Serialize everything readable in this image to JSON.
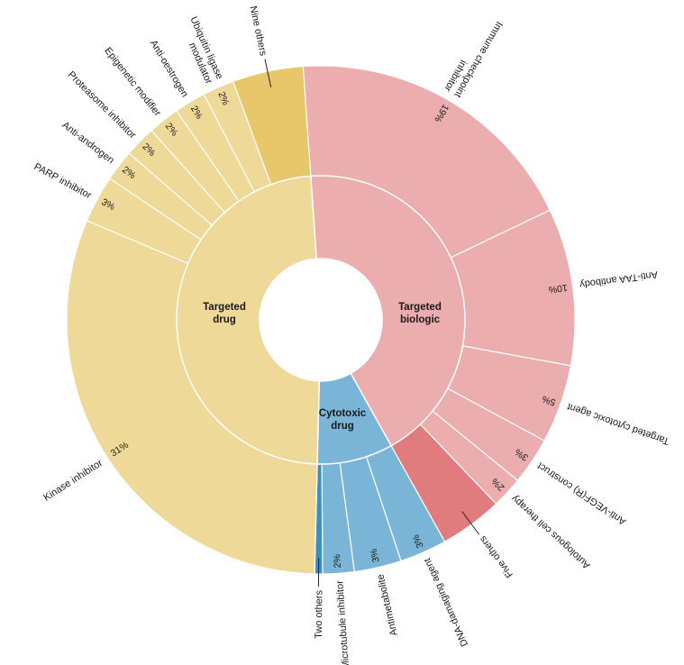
{
  "chart_data": {
    "type": "sunburst",
    "title": "",
    "colors": {
      "targeted_drug": "#EFD998",
      "targeted_biologic": "#EBADAE",
      "cytotoxic_drug": "#7AB4D6",
      "nine_others": "#E8C66A",
      "five_others": "#E07B7E",
      "two_others": "#3F8EC0"
    },
    "inner": [
      {
        "label": "Targeted drug",
        "label_lines": [
          "Targeted",
          "drug"
        ]
      },
      {
        "label": "Targeted biologic",
        "label_lines": [
          "Targeted",
          "biologic"
        ]
      },
      {
        "label": "Cytotoxic drug",
        "label_lines": [
          "Cytotoxic",
          "drug"
        ]
      }
    ],
    "outer": [
      {
        "label_lines": [
          "Immune checkpoint",
          "inhibitor"
        ],
        "pct": "19%",
        "value": 19,
        "parent": 1
      },
      {
        "label_lines": [
          "Anti-TAA antibody"
        ],
        "pct": "10%",
        "value": 10,
        "parent": 1
      },
      {
        "label_lines": [
          "Targeted cytotoxic agent"
        ],
        "pct": "5%",
        "value": 5,
        "parent": 1
      },
      {
        "label_lines": [
          "Anti-VEGF(R) construct"
        ],
        "pct": "3%",
        "value": 3,
        "parent": 1
      },
      {
        "label_lines": [
          "Autologous cell therapy"
        ],
        "pct": "2%",
        "value": 2,
        "parent": 1
      },
      {
        "label_lines": [
          "Five others"
        ],
        "pct": "",
        "value": 4,
        "parent": 1
      },
      {
        "label_lines": [
          "DNA-damaging agent"
        ],
        "pct": "3%",
        "value": 3,
        "parent": 2
      },
      {
        "label_lines": [
          "Antimetabolite"
        ],
        "pct": "3%",
        "value": 3,
        "parent": 2
      },
      {
        "label_lines": [
          "Microtubule inhibitor"
        ],
        "pct": "2%",
        "value": 2,
        "parent": 2
      },
      {
        "label_lines": [
          "Two others"
        ],
        "pct": "",
        "value": 0.5,
        "parent": 2
      },
      {
        "label_lines": [
          "Kinase inhibitor"
        ],
        "pct": "31%",
        "value": 31,
        "parent": 0
      },
      {
        "label_lines": [
          "PARP inhibitor"
        ],
        "pct": "3%",
        "value": 3,
        "parent": 0
      },
      {
        "label_lines": [
          "Anti-androgen"
        ],
        "pct": "2%",
        "value": 2,
        "parent": 0
      },
      {
        "label_lines": [
          "Proteasome inhibitor"
        ],
        "pct": "2%",
        "value": 2,
        "parent": 0
      },
      {
        "label_lines": [
          "Epigenetic modifier"
        ],
        "pct": "2%",
        "value": 2,
        "parent": 0
      },
      {
        "label_lines": [
          "Anti-oestrogen"
        ],
        "pct": "2%",
        "value": 2,
        "parent": 0
      },
      {
        "label_lines": [
          "Ubiquitin ligase",
          "modulator"
        ],
        "pct": "2%",
        "value": 2,
        "parent": 0
      },
      {
        "label_lines": [
          "Nine others"
        ],
        "pct": "",
        "value": 4.5,
        "parent": 0
      }
    ]
  }
}
